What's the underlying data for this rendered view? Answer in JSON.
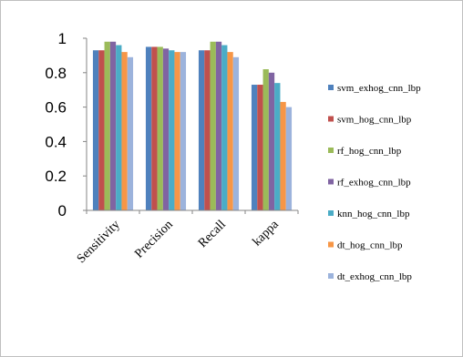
{
  "chart_data": {
    "type": "bar",
    "categories": [
      "Sensitivity",
      "Precision",
      "Recall",
      "kappa"
    ],
    "ylim": [
      0,
      1
    ],
    "yticks": [
      0,
      0.2,
      0.4,
      0.6,
      0.8,
      1
    ],
    "ytick_labels": [
      "0",
      "0.2",
      "0.4",
      "0.6",
      "0.8",
      "1"
    ],
    "legend_position": "right",
    "grid": false,
    "series": [
      {
        "name": "svm_exhog_cnn_lbp",
        "color": "#4f81bd",
        "values": [
          0.93,
          0.95,
          0.93,
          0.73
        ]
      },
      {
        "name": "svm_hog_cnn_lbp",
        "color": "#c0504d",
        "values": [
          0.93,
          0.95,
          0.93,
          0.73
        ]
      },
      {
        "name": "rf_hog_cnn_lbp",
        "color": "#9bbb59",
        "values": [
          0.98,
          0.95,
          0.98,
          0.82
        ]
      },
      {
        "name": "rf_exhog_cnn_lbp",
        "color": "#8064a2",
        "values": [
          0.98,
          0.94,
          0.98,
          0.8
        ]
      },
      {
        "name": "knn_hog_cnn_lbp",
        "color": "#4bacc6",
        "values": [
          0.96,
          0.93,
          0.96,
          0.74
        ]
      },
      {
        "name": "dt_hog_cnn_lbp",
        "color": "#f79646",
        "values": [
          0.92,
          0.92,
          0.92,
          0.63
        ]
      },
      {
        "name": "dt_exhog_cnn_lbp",
        "color": "#9cb3dc",
        "values": [
          0.89,
          0.92,
          0.89,
          0.6
        ]
      }
    ]
  }
}
